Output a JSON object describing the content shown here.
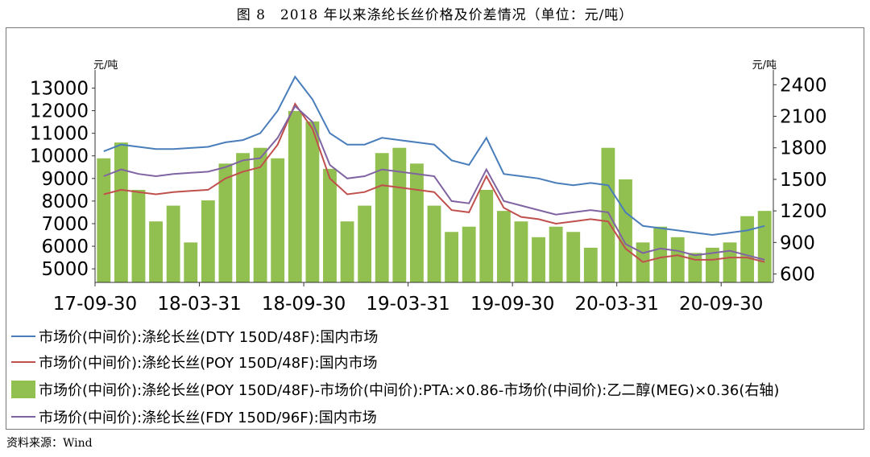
{
  "title": "图 8　2018 年以来涤纶长丝价格及价差情况（单位：元/吨）",
  "source": "资料来源：Wind",
  "chart_data": {
    "type": "line",
    "left_axis": {
      "unit": "元/吨",
      "ylim": [
        4400,
        13800
      ],
      "ticks": [
        5000,
        6000,
        7000,
        8000,
        9000,
        10000,
        11000,
        12000,
        13000
      ]
    },
    "right_axis": {
      "unit": "元/吨",
      "ylim": [
        520,
        2540
      ],
      "ticks": [
        600,
        900,
        1200,
        1500,
        1800,
        2100,
        2400
      ]
    },
    "x_ticks": [
      "17-09-30",
      "18-03-31",
      "18-09-30",
      "19-03-31",
      "19-09-30",
      "20-03-31",
      "20-09-30"
    ],
    "x": [
      "17-09-30",
      "17-10-31",
      "17-11-30",
      "17-12-31",
      "18-01-31",
      "18-02-28",
      "18-03-31",
      "18-04-30",
      "18-05-31",
      "18-06-30",
      "18-07-31",
      "18-08-31",
      "18-09-30",
      "18-10-31",
      "18-11-30",
      "18-12-31",
      "19-01-31",
      "19-02-28",
      "19-03-31",
      "19-04-30",
      "19-05-31",
      "19-06-30",
      "19-07-31",
      "19-08-31",
      "19-09-30",
      "19-10-31",
      "19-11-30",
      "19-12-31",
      "20-01-31",
      "20-02-29",
      "20-03-31",
      "20-04-30",
      "20-05-31",
      "20-06-30",
      "20-07-31",
      "20-08-31",
      "20-09-30",
      "20-10-31",
      "20-11-30"
    ],
    "series": [
      {
        "name": "市场价(中间价):涤纶长丝(DTY 150D/48F):国内市场",
        "axis": "left",
        "kind": "line",
        "color": "#4a7ebb",
        "values": [
          10200,
          10500,
          10400,
          10300,
          10300,
          10350,
          10400,
          10600,
          10700,
          11000,
          12000,
          13500,
          12500,
          11000,
          10500,
          10500,
          10800,
          10700,
          10600,
          10500,
          9800,
          9600,
          10800,
          9200,
          9100,
          9000,
          8800,
          8700,
          8800,
          8700,
          7500,
          6900,
          6800,
          6700,
          6600,
          6500,
          6600,
          6700,
          6900
        ]
      },
      {
        "name": "市场价(中间价):涤纶长丝(POY 150D/48F):国内市场",
        "axis": "left",
        "kind": "line",
        "color": "#c0504d",
        "values": [
          8300,
          8500,
          8400,
          8300,
          8400,
          8450,
          8500,
          9000,
          9300,
          9500,
          10500,
          12300,
          11200,
          9000,
          8300,
          8400,
          8700,
          8600,
          8500,
          8400,
          7600,
          7500,
          9100,
          7700,
          7300,
          7200,
          7000,
          7100,
          7200,
          7100,
          5900,
          5300,
          5500,
          5600,
          5400,
          5400,
          5500,
          5500,
          5300
        ]
      },
      {
        "name": "市场价(中间价):涤纶长丝(POY 150D/48F)-市场价(中间价):PTA:×0.86-市场价(中间价):乙二醇(MEG)×0.36(右轴)",
        "axis": "right",
        "kind": "bar",
        "color": "#92c050",
        "values": [
          1700,
          1850,
          1400,
          1100,
          1250,
          900,
          1300,
          1650,
          1750,
          1800,
          1700,
          2150,
          2050,
          1600,
          1100,
          1250,
          1750,
          1800,
          1650,
          1250,
          1000,
          1050,
          1400,
          1200,
          1100,
          950,
          1050,
          1000,
          850,
          1800,
          1500,
          900,
          1050,
          950,
          800,
          850,
          900,
          1150,
          1200
        ]
      },
      {
        "name": "市场价(中间价):涤纶长丝(FDY 150D/96F):国内市场",
        "axis": "left",
        "kind": "line",
        "color": "#8064a2",
        "values": [
          9100,
          9400,
          9200,
          9100,
          9200,
          9250,
          9300,
          9500,
          9800,
          9900,
          10800,
          12200,
          11500,
          9600,
          9000,
          9100,
          9400,
          9300,
          9200,
          9100,
          8000,
          7900,
          9400,
          8000,
          7800,
          7600,
          7400,
          7500,
          7600,
          7500,
          6100,
          5700,
          5900,
          5800,
          5600,
          5700,
          5800,
          5600,
          5400
        ]
      }
    ],
    "legend_placement": "bottom",
    "grid": false
  }
}
